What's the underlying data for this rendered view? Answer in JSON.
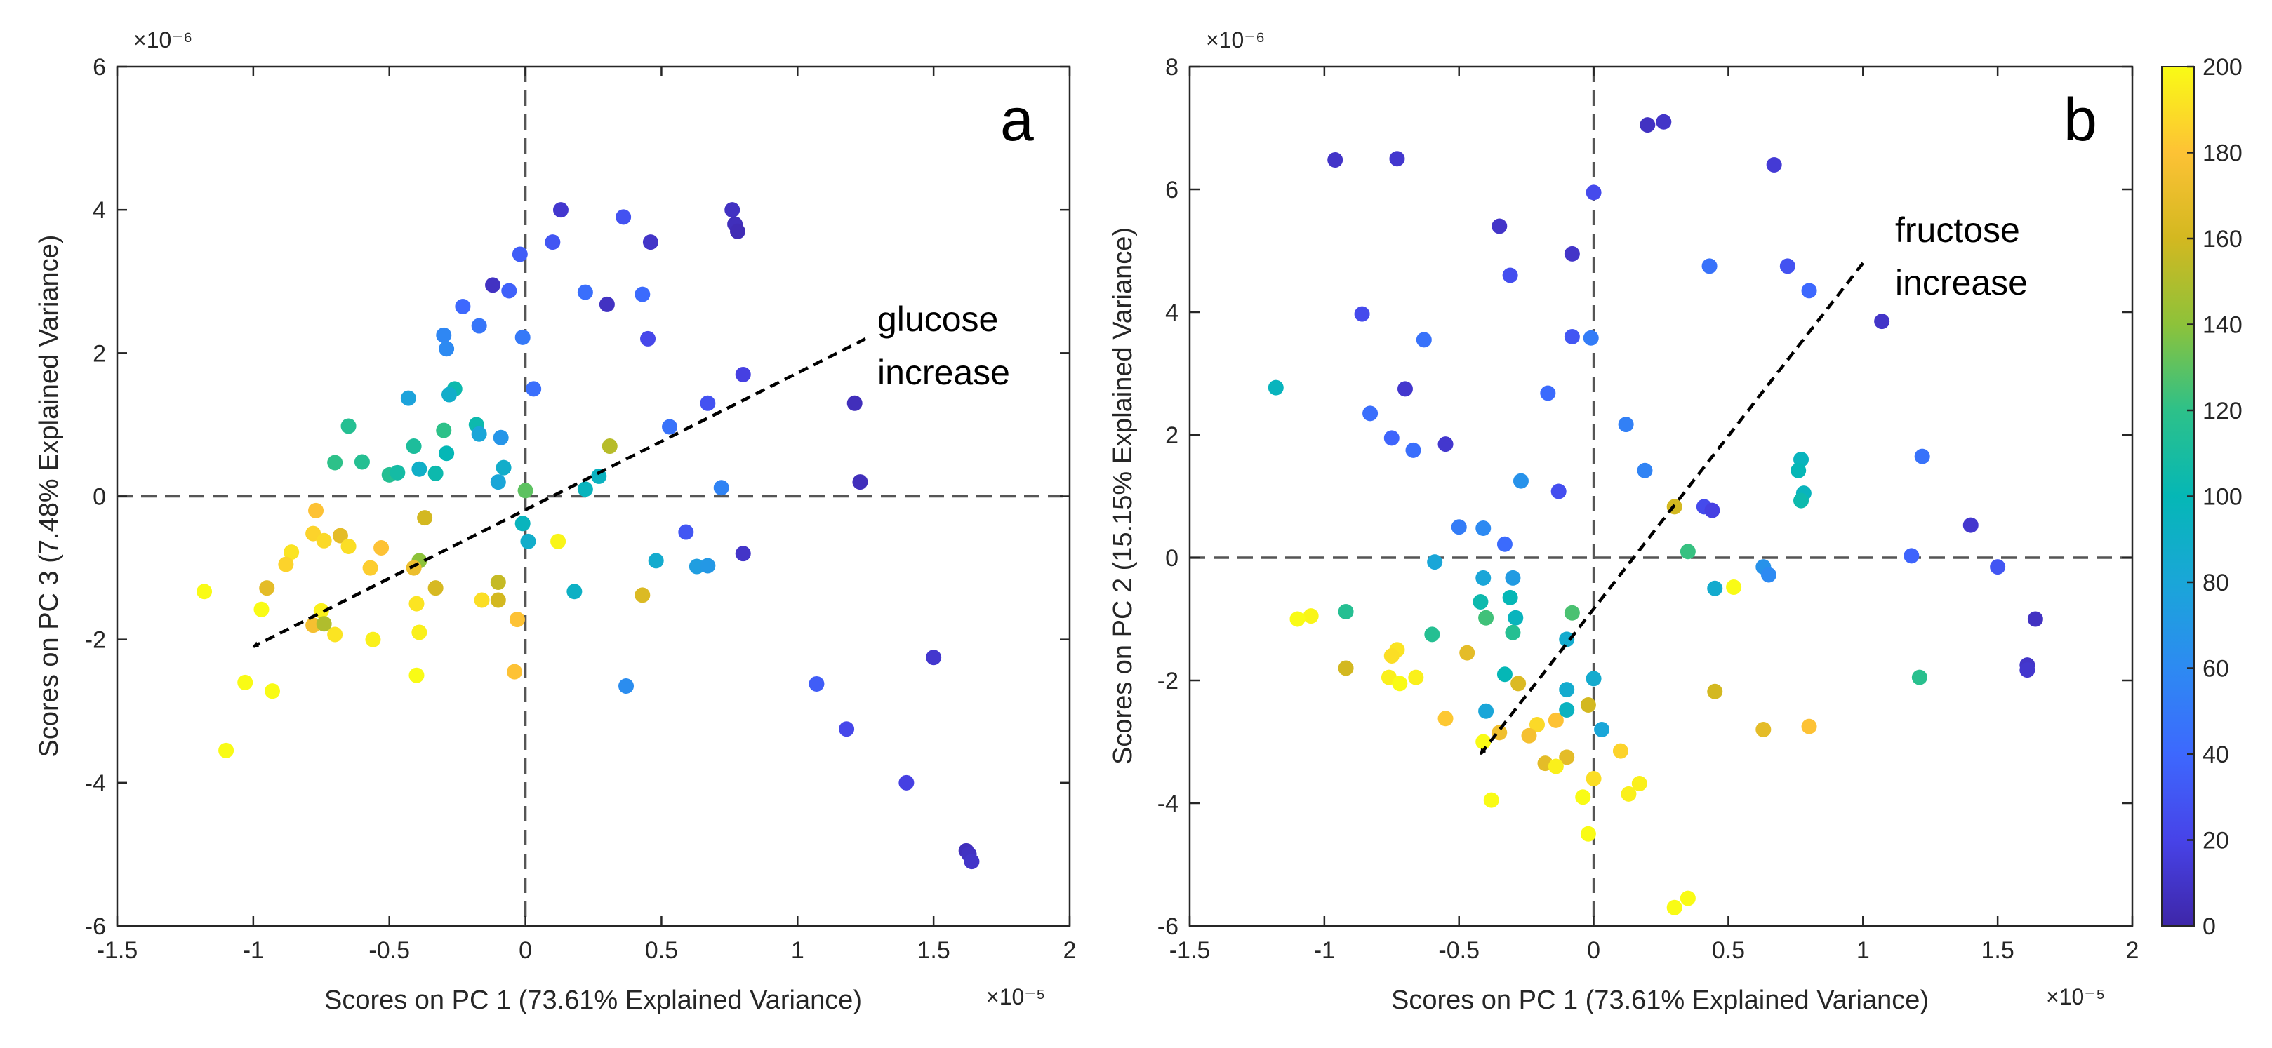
{
  "chart_data": [
    {
      "type": "scatter",
      "panel_label": "a",
      "xlabel": "Scores on PC 1 (73.61% Explained Variance)",
      "ylabel": "Scores on PC 3 (7.48% Explained Variance)",
      "x_exponent": "×10⁻⁵",
      "y_exponent": "×10⁻⁶",
      "xlim": [
        -1.5,
        2
      ],
      "ylim": [
        -6,
        6
      ],
      "xticks": [
        -1.5,
        -1,
        -0.5,
        0,
        0.5,
        1,
        1.5,
        2
      ],
      "xtick_labels": [
        "-1.5",
        "-1",
        "-0.5",
        "0",
        "0.5",
        "1",
        "1.5",
        "2"
      ],
      "yticks": [
        -6,
        -4,
        -2,
        0,
        2,
        4,
        6
      ],
      "ytick_labels": [
        "-6",
        "-4",
        "-2",
        "0",
        "2",
        "4",
        "6"
      ],
      "annotation": [
        "glucose",
        "increase"
      ],
      "arrow": {
        "from": [
          1.25,
          2.2
        ],
        "to": [
          -1.0,
          -2.1
        ]
      },
      "points": [
        {
          "x": 0.13,
          "y": 4.0,
          "c": 12
        },
        {
          "x": 0.36,
          "y": 3.9,
          "c": 28
        },
        {
          "x": 0.76,
          "y": 4.0,
          "c": 8
        },
        {
          "x": 0.77,
          "y": 3.8,
          "c": 6
        },
        {
          "x": 0.78,
          "y": 3.7,
          "c": 4
        },
        {
          "x": 0.46,
          "y": 3.55,
          "c": 10
        },
        {
          "x": 0.1,
          "y": 3.55,
          "c": 30
        },
        {
          "x": -0.02,
          "y": 3.38,
          "c": 34
        },
        {
          "x": -0.12,
          "y": 2.95,
          "c": 8
        },
        {
          "x": -0.06,
          "y": 2.87,
          "c": 36
        },
        {
          "x": 0.3,
          "y": 2.68,
          "c": 8
        },
        {
          "x": 0.43,
          "y": 2.82,
          "c": 42
        },
        {
          "x": 0.22,
          "y": 2.85,
          "c": 44
        },
        {
          "x": -0.23,
          "y": 2.65,
          "c": 40
        },
        {
          "x": -0.3,
          "y": 2.25,
          "c": 58
        },
        {
          "x": -0.29,
          "y": 2.06,
          "c": 60
        },
        {
          "x": -0.17,
          "y": 2.38,
          "c": 48
        },
        {
          "x": 0.45,
          "y": 2.2,
          "c": 22
        },
        {
          "x": -0.01,
          "y": 2.22,
          "c": 50
        },
        {
          "x": 0.03,
          "y": 1.5,
          "c": 44
        },
        {
          "x": -0.26,
          "y": 1.5,
          "c": 104
        },
        {
          "x": -0.28,
          "y": 1.42,
          "c": 88
        },
        {
          "x": -0.43,
          "y": 1.37,
          "c": 78
        },
        {
          "x": 0.8,
          "y": 1.7,
          "c": 18
        },
        {
          "x": 0.67,
          "y": 1.3,
          "c": 28
        },
        {
          "x": 1.21,
          "y": 1.3,
          "c": 6
        },
        {
          "x": 0.53,
          "y": 0.97,
          "c": 46
        },
        {
          "x": -0.65,
          "y": 0.98,
          "c": 116
        },
        {
          "x": -0.18,
          "y": 1.0,
          "c": 104
        },
        {
          "x": -0.3,
          "y": 0.92,
          "c": 120
        },
        {
          "x": -0.17,
          "y": 0.87,
          "c": 80
        },
        {
          "x": -0.09,
          "y": 0.82,
          "c": 68
        },
        {
          "x": -0.41,
          "y": 0.7,
          "c": 112
        },
        {
          "x": -0.29,
          "y": 0.6,
          "c": 100
        },
        {
          "x": 0.31,
          "y": 0.7,
          "c": 152
        },
        {
          "x": -0.7,
          "y": 0.47,
          "c": 120
        },
        {
          "x": -0.6,
          "y": 0.48,
          "c": 116
        },
        {
          "x": -0.5,
          "y": 0.3,
          "c": 116
        },
        {
          "x": -0.47,
          "y": 0.33,
          "c": 108
        },
        {
          "x": -0.39,
          "y": 0.38,
          "c": 90
        },
        {
          "x": -0.33,
          "y": 0.32,
          "c": 104
        },
        {
          "x": -0.08,
          "y": 0.4,
          "c": 88
        },
        {
          "x": -0.1,
          "y": 0.2,
          "c": 80
        },
        {
          "x": 0.27,
          "y": 0.28,
          "c": 94
        },
        {
          "x": 0.22,
          "y": 0.1,
          "c": 96
        },
        {
          "x": 0.0,
          "y": 0.08,
          "c": 130
        },
        {
          "x": 1.23,
          "y": 0.2,
          "c": 6
        },
        {
          "x": 0.72,
          "y": 0.12,
          "c": 56
        },
        {
          "x": -0.37,
          "y": -0.3,
          "c": 160
        },
        {
          "x": -0.01,
          "y": -0.38,
          "c": 96
        },
        {
          "x": 0.01,
          "y": -0.63,
          "c": 88
        },
        {
          "x": 0.59,
          "y": -0.5,
          "c": 30
        },
        {
          "x": -0.77,
          "y": -0.2,
          "c": 180
        },
        {
          "x": -0.78,
          "y": -0.52,
          "c": 186
        },
        {
          "x": -0.68,
          "y": -0.55,
          "c": 168
        },
        {
          "x": -0.74,
          "y": -0.62,
          "c": 188
        },
        {
          "x": -0.86,
          "y": -0.78,
          "c": 192
        },
        {
          "x": -0.65,
          "y": -0.7,
          "c": 190
        },
        {
          "x": -0.53,
          "y": -0.72,
          "c": 180
        },
        {
          "x": -0.39,
          "y": -0.9,
          "c": 140
        },
        {
          "x": -0.57,
          "y": -1.0,
          "c": 184
        },
        {
          "x": -0.41,
          "y": -1.0,
          "c": 172
        },
        {
          "x": 0.12,
          "y": -0.63,
          "c": 198
        },
        {
          "x": 0.8,
          "y": -0.8,
          "c": 10
        },
        {
          "x": 0.48,
          "y": -0.9,
          "c": 86
        },
        {
          "x": 0.63,
          "y": -0.98,
          "c": 74
        },
        {
          "x": 0.67,
          "y": -0.97,
          "c": 70
        },
        {
          "x": -0.88,
          "y": -0.95,
          "c": 186
        },
        {
          "x": -0.95,
          "y": -1.28,
          "c": 168
        },
        {
          "x": -0.33,
          "y": -1.28,
          "c": 162
        },
        {
          "x": -0.1,
          "y": -1.2,
          "c": 156
        },
        {
          "x": -0.16,
          "y": -1.45,
          "c": 190
        },
        {
          "x": 0.43,
          "y": -1.38,
          "c": 164
        },
        {
          "x": 0.18,
          "y": -1.33,
          "c": 92
        },
        {
          "x": -1.18,
          "y": -1.33,
          "c": 200
        },
        {
          "x": -0.97,
          "y": -1.58,
          "c": 200
        },
        {
          "x": -0.75,
          "y": -1.6,
          "c": 196
        },
        {
          "x": -0.4,
          "y": -1.5,
          "c": 192
        },
        {
          "x": -0.1,
          "y": -1.45,
          "c": 160
        },
        {
          "x": -0.78,
          "y": -1.8,
          "c": 176
        },
        {
          "x": -0.74,
          "y": -1.78,
          "c": 150
        },
        {
          "x": -0.7,
          "y": -1.93,
          "c": 192
        },
        {
          "x": -0.56,
          "y": -2.0,
          "c": 196
        },
        {
          "x": -0.39,
          "y": -1.9,
          "c": 196
        },
        {
          "x": -0.03,
          "y": -1.72,
          "c": 180
        },
        {
          "x": -1.03,
          "y": -2.6,
          "c": 200
        },
        {
          "x": -0.93,
          "y": -2.72,
          "c": 200
        },
        {
          "x": -0.4,
          "y": -2.5,
          "c": 200
        },
        {
          "x": -0.04,
          "y": -2.45,
          "c": 180
        },
        {
          "x": 0.37,
          "y": -2.65,
          "c": 62
        },
        {
          "x": 1.07,
          "y": -2.62,
          "c": 34
        },
        {
          "x": 1.5,
          "y": -2.25,
          "c": 12
        },
        {
          "x": 1.18,
          "y": -3.25,
          "c": 22
        },
        {
          "x": 1.4,
          "y": -4.0,
          "c": 18
        },
        {
          "x": 1.62,
          "y": -4.95,
          "c": 6
        },
        {
          "x": 1.63,
          "y": -5.0,
          "c": 8
        },
        {
          "x": 1.64,
          "y": -5.1,
          "c": 10
        },
        {
          "x": -1.1,
          "y": -3.55,
          "c": 200
        }
      ]
    },
    {
      "type": "scatter",
      "panel_label": "b",
      "xlabel": "Scores on PC 1 (73.61% Explained Variance)",
      "ylabel": "Scores on PC 2 (15.15% Explained Variance)",
      "x_exponent": "×10⁻⁵",
      "y_exponent": "×10⁻⁶",
      "xlim": [
        -1.5,
        2
      ],
      "ylim": [
        -6,
        8
      ],
      "xticks": [
        -1.5,
        -1,
        -0.5,
        0,
        0.5,
        1,
        1.5,
        2
      ],
      "xtick_labels": [
        "-1.5",
        "-1",
        "-0.5",
        "0",
        "0.5",
        "1",
        "1.5",
        "2"
      ],
      "yticks": [
        -6,
        -4,
        -2,
        0,
        2,
        4,
        6,
        8
      ],
      "ytick_labels": [
        "-6",
        "-4",
        "-2",
        "0",
        "2",
        "4",
        "6",
        "8"
      ],
      "annotation": [
        "fructose",
        "increase"
      ],
      "arrow": {
        "from": [
          1.0,
          4.8
        ],
        "to": [
          -0.42,
          -3.2
        ]
      },
      "colorbar": {
        "min": 0,
        "max": 200,
        "ticks": [
          0,
          20,
          40,
          60,
          80,
          100,
          120,
          140,
          160,
          180,
          200
        ],
        "tick_labels": [
          "0",
          "20",
          "40",
          "60",
          "80",
          "100",
          "120",
          "140",
          "160",
          "180",
          "200"
        ]
      },
      "points": [
        {
          "x": 0.2,
          "y": 7.05,
          "c": 8
        },
        {
          "x": 0.26,
          "y": 7.1,
          "c": 10
        },
        {
          "x": -0.96,
          "y": 6.48,
          "c": 10
        },
        {
          "x": -0.73,
          "y": 6.5,
          "c": 12
        },
        {
          "x": 0.67,
          "y": 6.4,
          "c": 14
        },
        {
          "x": 0.0,
          "y": 5.95,
          "c": 24
        },
        {
          "x": -0.35,
          "y": 5.4,
          "c": 10
        },
        {
          "x": -0.08,
          "y": 4.95,
          "c": 10
        },
        {
          "x": -0.31,
          "y": 4.6,
          "c": 26
        },
        {
          "x": 0.43,
          "y": 4.75,
          "c": 46
        },
        {
          "x": 0.72,
          "y": 4.75,
          "c": 28
        },
        {
          "x": 0.8,
          "y": 4.35,
          "c": 40
        },
        {
          "x": 1.07,
          "y": 3.85,
          "c": 10
        },
        {
          "x": -0.86,
          "y": 3.97,
          "c": 24
        },
        {
          "x": -0.63,
          "y": 3.55,
          "c": 46
        },
        {
          "x": -0.08,
          "y": 3.6,
          "c": 30
        },
        {
          "x": -0.01,
          "y": 3.58,
          "c": 52
        },
        {
          "x": -1.18,
          "y": 2.77,
          "c": 96
        },
        {
          "x": -0.7,
          "y": 2.75,
          "c": 12
        },
        {
          "x": -0.17,
          "y": 2.68,
          "c": 42
        },
        {
          "x": 0.12,
          "y": 2.17,
          "c": 54
        },
        {
          "x": -0.83,
          "y": 2.35,
          "c": 44
        },
        {
          "x": -0.75,
          "y": 1.95,
          "c": 38
        },
        {
          "x": -0.55,
          "y": 1.85,
          "c": 12
        },
        {
          "x": -0.67,
          "y": 1.75,
          "c": 44
        },
        {
          "x": 0.77,
          "y": 1.6,
          "c": 96
        },
        {
          "x": 1.22,
          "y": 1.65,
          "c": 46
        },
        {
          "x": 0.19,
          "y": 1.42,
          "c": 56
        },
        {
          "x": 0.76,
          "y": 1.42,
          "c": 100
        },
        {
          "x": -0.27,
          "y": 1.25,
          "c": 66
        },
        {
          "x": -0.13,
          "y": 1.08,
          "c": 26
        },
        {
          "x": 0.78,
          "y": 1.05,
          "c": 96
        },
        {
          "x": 0.77,
          "y": 0.93,
          "c": 104
        },
        {
          "x": 0.3,
          "y": 0.83,
          "c": 160
        },
        {
          "x": 0.41,
          "y": 0.83,
          "c": 24
        },
        {
          "x": 0.44,
          "y": 0.77,
          "c": 18
        },
        {
          "x": -0.5,
          "y": 0.5,
          "c": 52
        },
        {
          "x": -0.41,
          "y": 0.48,
          "c": 60
        },
        {
          "x": -0.33,
          "y": 0.22,
          "c": 42
        },
        {
          "x": 0.35,
          "y": 0.1,
          "c": 122
        },
        {
          "x": 1.18,
          "y": 0.03,
          "c": 38
        },
        {
          "x": 1.4,
          "y": 0.53,
          "c": 12
        },
        {
          "x": -0.59,
          "y": -0.07,
          "c": 80
        },
        {
          "x": 0.63,
          "y": -0.15,
          "c": 66
        },
        {
          "x": 0.65,
          "y": -0.28,
          "c": 60
        },
        {
          "x": 1.5,
          "y": -0.15,
          "c": 30
        },
        {
          "x": -0.41,
          "y": -0.33,
          "c": 80
        },
        {
          "x": -0.3,
          "y": -0.33,
          "c": 72
        },
        {
          "x": 0.45,
          "y": -0.5,
          "c": 86
        },
        {
          "x": 0.52,
          "y": -0.48,
          "c": 200
        },
        {
          "x": -0.42,
          "y": -0.72,
          "c": 104
        },
        {
          "x": -0.31,
          "y": -0.65,
          "c": 100
        },
        {
          "x": -0.92,
          "y": -0.88,
          "c": 116
        },
        {
          "x": -0.4,
          "y": -0.98,
          "c": 124
        },
        {
          "x": -0.08,
          "y": -0.9,
          "c": 126
        },
        {
          "x": -0.29,
          "y": -0.98,
          "c": 96
        },
        {
          "x": 1.64,
          "y": -1.0,
          "c": 8
        },
        {
          "x": -1.05,
          "y": -0.95,
          "c": 198
        },
        {
          "x": -1.1,
          "y": -1.0,
          "c": 200
        },
        {
          "x": -0.6,
          "y": -1.25,
          "c": 116
        },
        {
          "x": -0.3,
          "y": -1.22,
          "c": 116
        },
        {
          "x": -0.1,
          "y": -1.33,
          "c": 86
        },
        {
          "x": -0.73,
          "y": -1.5,
          "c": 192
        },
        {
          "x": -0.75,
          "y": -1.6,
          "c": 190
        },
        {
          "x": -0.47,
          "y": -1.55,
          "c": 168
        },
        {
          "x": -0.92,
          "y": -1.8,
          "c": 160
        },
        {
          "x": -0.66,
          "y": -1.95,
          "c": 196
        },
        {
          "x": -0.76,
          "y": -1.95,
          "c": 196
        },
        {
          "x": -0.72,
          "y": -2.05,
          "c": 200
        },
        {
          "x": -0.33,
          "y": -1.9,
          "c": 100
        },
        {
          "x": 0.0,
          "y": -1.97,
          "c": 86
        },
        {
          "x": 1.61,
          "y": -1.75,
          "c": 10
        },
        {
          "x": 1.61,
          "y": -1.83,
          "c": 12
        },
        {
          "x": 1.21,
          "y": -1.95,
          "c": 118
        },
        {
          "x": -0.28,
          "y": -2.05,
          "c": 164
        },
        {
          "x": -0.1,
          "y": -2.15,
          "c": 86
        },
        {
          "x": -0.02,
          "y": -2.4,
          "c": 160
        },
        {
          "x": 0.45,
          "y": -2.18,
          "c": 160
        },
        {
          "x": -0.55,
          "y": -2.62,
          "c": 182
        },
        {
          "x": -0.4,
          "y": -2.5,
          "c": 80
        },
        {
          "x": -0.21,
          "y": -2.72,
          "c": 188
        },
        {
          "x": -0.14,
          "y": -2.65,
          "c": 180
        },
        {
          "x": -0.1,
          "y": -2.48,
          "c": 94
        },
        {
          "x": -0.35,
          "y": -2.85,
          "c": 174
        },
        {
          "x": -0.24,
          "y": -2.9,
          "c": 176
        },
        {
          "x": 0.03,
          "y": -2.8,
          "c": 80
        },
        {
          "x": 0.63,
          "y": -2.8,
          "c": 168
        },
        {
          "x": 0.8,
          "y": -2.75,
          "c": 180
        },
        {
          "x": -0.41,
          "y": -3.0,
          "c": 200
        },
        {
          "x": 0.1,
          "y": -3.15,
          "c": 186
        },
        {
          "x": -0.18,
          "y": -3.35,
          "c": 168
        },
        {
          "x": -0.1,
          "y": -3.25,
          "c": 168
        },
        {
          "x": -0.14,
          "y": -3.4,
          "c": 196
        },
        {
          "x": 0.0,
          "y": -3.6,
          "c": 190
        },
        {
          "x": 0.17,
          "y": -3.68,
          "c": 196
        },
        {
          "x": 0.13,
          "y": -3.85,
          "c": 196
        },
        {
          "x": -0.04,
          "y": -3.9,
          "c": 200
        },
        {
          "x": -0.38,
          "y": -3.95,
          "c": 200
        },
        {
          "x": -0.02,
          "y": -4.5,
          "c": 200
        },
        {
          "x": 0.3,
          "y": -5.7,
          "c": 200
        },
        {
          "x": 0.35,
          "y": -5.55,
          "c": 200
        }
      ]
    }
  ]
}
